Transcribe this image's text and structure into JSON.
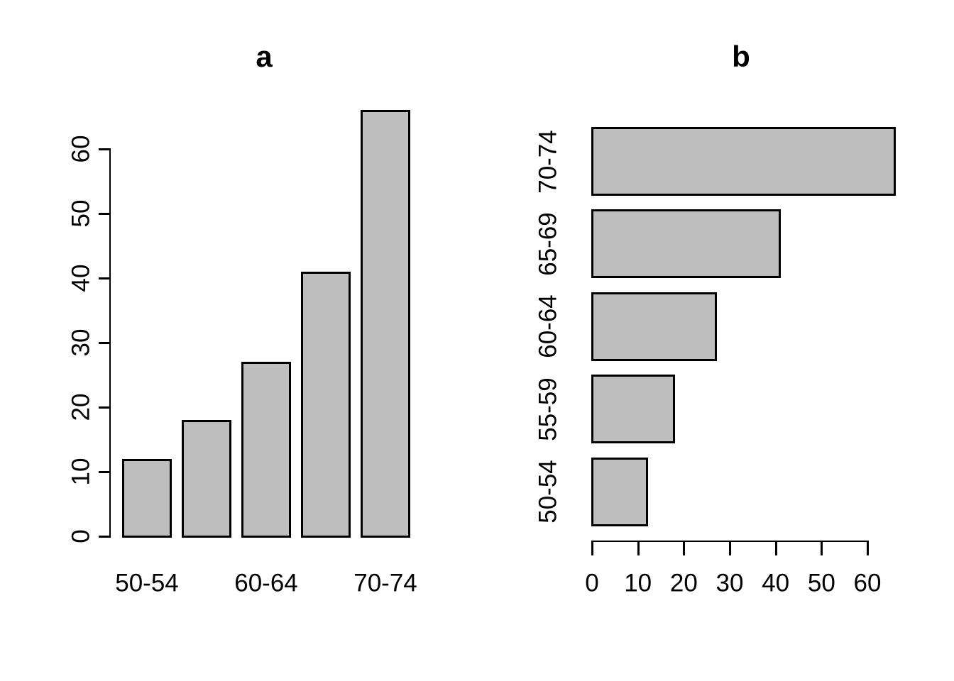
{
  "figure": {
    "background": "#ffffff",
    "bar_fill": "#bebebe",
    "bar_border": "#000000",
    "text_color": "#000000"
  },
  "chart_data": [
    {
      "id": "a",
      "type": "bar",
      "orientation": "vertical",
      "title": "a",
      "categories": [
        "50-54",
        "55-59",
        "60-64",
        "65-69",
        "70-74"
      ],
      "values": [
        12,
        18,
        27,
        41,
        66
      ],
      "shown_category_label_indices": [
        0,
        2,
        4
      ],
      "shown_category_labels": [
        "50-54",
        "60-64",
        "70-74"
      ],
      "value_axis": {
        "min": 0,
        "max": 60,
        "ticks": [
          0,
          10,
          20,
          30,
          40,
          50,
          60
        ]
      },
      "grid": false,
      "legend": false,
      "note": "last bar exceeds axis maximum"
    },
    {
      "id": "b",
      "type": "bar",
      "orientation": "horizontal",
      "title": "b",
      "categories": [
        "50-54",
        "55-59",
        "60-64",
        "65-69",
        "70-74"
      ],
      "values": [
        12,
        18,
        27,
        41,
        66
      ],
      "category_order_top_to_bottom": [
        "70-74",
        "65-69",
        "60-64",
        "55-59",
        "50-54"
      ],
      "value_axis": {
        "min": 0,
        "max": 60,
        "ticks": [
          0,
          10,
          20,
          30,
          40,
          50,
          60
        ]
      },
      "grid": false,
      "legend": false,
      "note": "top bar exceeds axis maximum"
    }
  ]
}
